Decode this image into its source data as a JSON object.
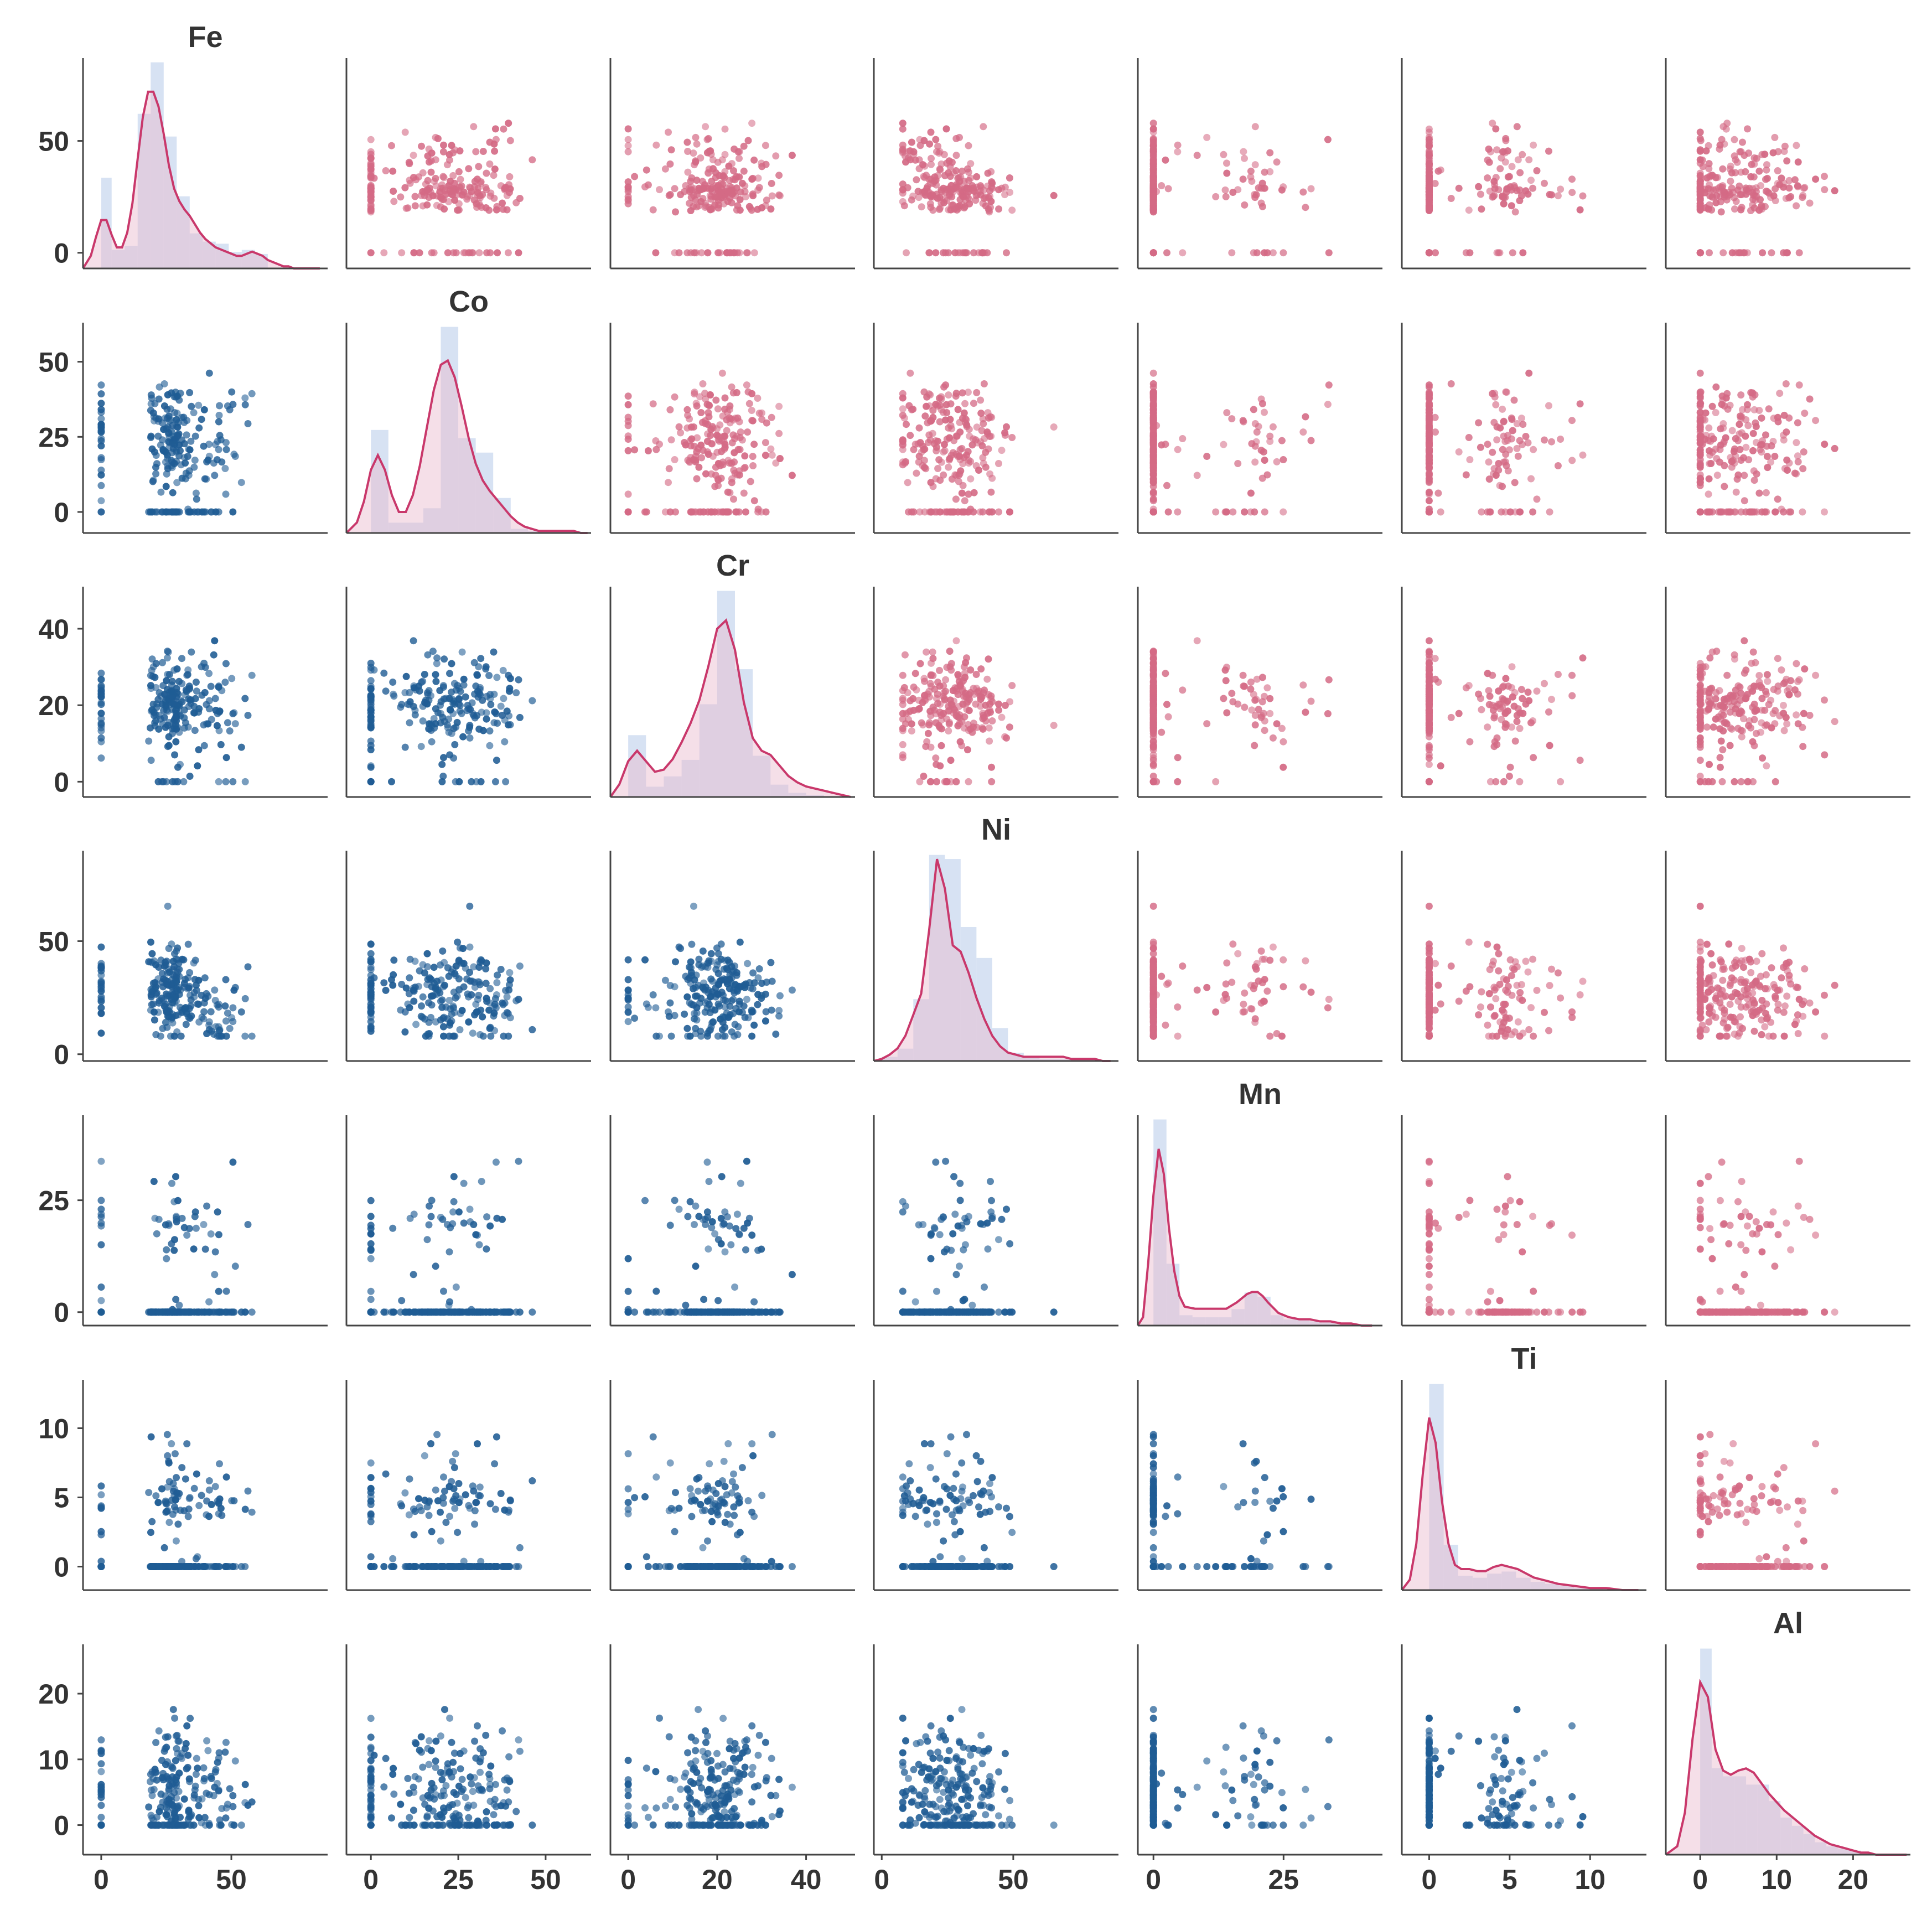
{
  "chart_data": {
    "type": "pairplot",
    "variables": [
      "Fe",
      "Co",
      "Cr",
      "Ni",
      "Mn",
      "Ti",
      "Al"
    ],
    "colors": {
      "upper_points": "#d46a85",
      "lower_points": "#1f5c94",
      "kde_line": "#c9386b",
      "kde_fill": "#e9b7cd",
      "hist_bar": "#c9d8ef",
      "axis": "#444444"
    },
    "grid": false,
    "axes": {
      "Fe": {
        "range": [
          -7,
          87
        ],
        "ticks": [
          0,
          50
        ],
        "tick_labels": [
          "0",
          "50"
        ]
      },
      "Co": {
        "range": [
          -7,
          63
        ],
        "ticks": [
          0,
          25,
          50
        ],
        "tick_labels": [
          "0",
          "25",
          "50"
        ]
      },
      "Cr": {
        "range": [
          -4,
          51
        ],
        "ticks": [
          0,
          20,
          40
        ],
        "tick_labels": [
          "0",
          "20",
          "40"
        ]
      },
      "Ni": {
        "range": [
          -3,
          90
        ],
        "ticks": [
          0,
          50
        ],
        "tick_labels": [
          "0",
          "50"
        ]
      },
      "Mn": {
        "range": [
          -3,
          44
        ],
        "ticks": [
          0,
          25
        ],
        "tick_labels": [
          "0",
          "25"
        ]
      },
      "Ti": {
        "range": [
          -1.7,
          13.5
        ],
        "ticks": [
          0,
          5,
          10
        ],
        "tick_labels": [
          "0",
          "5",
          "10"
        ]
      },
      "Al": {
        "range": [
          -4.5,
          27.5
        ],
        "ticks": [
          0,
          10,
          20
        ],
        "tick_labels": [
          "0",
          "10",
          "20"
        ]
      }
    },
    "diagonal": {
      "Fe": {
        "hist": [
          [
            0,
            4,
            0.44
          ],
          [
            4,
            9,
            0.09
          ],
          [
            9,
            14,
            0.11
          ],
          [
            14,
            19,
            0.75
          ],
          [
            19,
            24,
            1.0
          ],
          [
            24,
            29,
            0.64
          ],
          [
            29,
            34,
            0.35
          ],
          [
            34,
            39,
            0.17
          ],
          [
            39,
            44,
            0.13
          ],
          [
            44,
            49,
            0.12
          ],
          [
            49,
            54,
            0.08
          ],
          [
            54,
            59,
            0.09
          ],
          [
            59,
            64,
            0.07
          ]
        ],
        "kde_x": [
          -8,
          -4,
          -2,
          0,
          2,
          4,
          6,
          8,
          10,
          12,
          14,
          16,
          18,
          20,
          22,
          24,
          26,
          28,
          30,
          32,
          34,
          36,
          38,
          40,
          42,
          44,
          46,
          48,
          50,
          52,
          54,
          56,
          58,
          60,
          62,
          64,
          66,
          68,
          70,
          72,
          74,
          78,
          84
        ],
        "kde_y": [
          0.0,
          0.06,
          0.15,
          0.23,
          0.23,
          0.16,
          0.1,
          0.1,
          0.17,
          0.31,
          0.52,
          0.72,
          0.84,
          0.84,
          0.77,
          0.64,
          0.49,
          0.38,
          0.32,
          0.28,
          0.25,
          0.21,
          0.17,
          0.14,
          0.12,
          0.1,
          0.09,
          0.08,
          0.07,
          0.06,
          0.06,
          0.07,
          0.08,
          0.07,
          0.06,
          0.04,
          0.03,
          0.02,
          0.01,
          0.01,
          0.0,
          0.0,
          0.0
        ]
      },
      "Co": {
        "hist": [
          [
            0,
            5,
            0.5
          ],
          [
            5,
            10,
            0.05
          ],
          [
            10,
            15,
            0.05
          ],
          [
            15,
            20,
            0.12
          ],
          [
            20,
            25,
            1.0
          ],
          [
            25,
            30,
            0.46
          ],
          [
            30,
            35,
            0.39
          ],
          [
            35,
            40,
            0.17
          ],
          [
            40,
            45,
            0.02
          ],
          [
            45,
            50,
            0.01
          ],
          [
            50,
            55,
            0.01
          ],
          [
            55,
            60,
            0.01
          ]
        ],
        "kde_x": [
          -7,
          -4,
          -2,
          0,
          2,
          4,
          6,
          8,
          10,
          12,
          14,
          16,
          18,
          20,
          22,
          24,
          26,
          28,
          30,
          32,
          34,
          36,
          38,
          40,
          42,
          44,
          46,
          48,
          50,
          52,
          54,
          56,
          58,
          60,
          62
        ],
        "kde_y": [
          0.0,
          0.05,
          0.15,
          0.3,
          0.37,
          0.3,
          0.18,
          0.1,
          0.1,
          0.18,
          0.32,
          0.5,
          0.68,
          0.8,
          0.82,
          0.74,
          0.6,
          0.45,
          0.33,
          0.25,
          0.2,
          0.16,
          0.12,
          0.08,
          0.05,
          0.03,
          0.02,
          0.01,
          0.01,
          0.01,
          0.01,
          0.01,
          0.01,
          0.0,
          0.0
        ]
      },
      "Cr": {
        "hist": [
          [
            0,
            4,
            0.3
          ],
          [
            4,
            8,
            0.05
          ],
          [
            8,
            12,
            0.1
          ],
          [
            12,
            16,
            0.18
          ],
          [
            16,
            20,
            0.45
          ],
          [
            20,
            24,
            1.0
          ],
          [
            24,
            28,
            0.62
          ],
          [
            28,
            32,
            0.2
          ],
          [
            32,
            36,
            0.06
          ],
          [
            36,
            40,
            0.02
          ],
          [
            40,
            44,
            0.01
          ]
        ],
        "kde_x": [
          -4,
          -2,
          0,
          2,
          4,
          6,
          8,
          10,
          12,
          14,
          16,
          18,
          20,
          22,
          24,
          26,
          28,
          30,
          32,
          34,
          36,
          38,
          40,
          42,
          44,
          46,
          48,
          50
        ],
        "kde_y": [
          0.0,
          0.06,
          0.17,
          0.22,
          0.17,
          0.12,
          0.13,
          0.18,
          0.26,
          0.35,
          0.46,
          0.62,
          0.8,
          0.84,
          0.7,
          0.45,
          0.28,
          0.22,
          0.2,
          0.15,
          0.1,
          0.07,
          0.05,
          0.04,
          0.03,
          0.02,
          0.01,
          0.0
        ]
      },
      "Ni": {
        "hist": [
          [
            0,
            6,
            0.02
          ],
          [
            6,
            12,
            0.06
          ],
          [
            12,
            18,
            0.3
          ],
          [
            18,
            24,
            1.0
          ],
          [
            24,
            30,
            0.98
          ],
          [
            30,
            36,
            0.65
          ],
          [
            36,
            42,
            0.5
          ],
          [
            42,
            48,
            0.16
          ],
          [
            48,
            54,
            0.04
          ],
          [
            54,
            60,
            0.02
          ],
          [
            60,
            66,
            0.01
          ],
          [
            66,
            72,
            0.01
          ]
        ],
        "kde_x": [
          -3,
          0,
          3,
          6,
          9,
          12,
          15,
          18,
          21,
          24,
          27,
          30,
          33,
          36,
          39,
          42,
          45,
          48,
          51,
          54,
          57,
          60,
          63,
          66,
          69,
          72,
          75,
          78,
          81,
          84,
          87
        ],
        "kde_y": [
          0.0,
          0.01,
          0.03,
          0.06,
          0.12,
          0.22,
          0.32,
          0.62,
          0.96,
          0.82,
          0.55,
          0.52,
          0.42,
          0.3,
          0.2,
          0.12,
          0.07,
          0.04,
          0.03,
          0.02,
          0.02,
          0.02,
          0.02,
          0.02,
          0.02,
          0.01,
          0.01,
          0.01,
          0.01,
          0.0,
          0.0
        ]
      },
      "Mn": {
        "hist": [
          [
            0,
            2.5,
            1.0
          ],
          [
            2.5,
            5,
            0.3
          ],
          [
            5,
            7.5,
            0.05
          ],
          [
            7.5,
            10,
            0.04
          ],
          [
            10,
            12.5,
            0.04
          ],
          [
            12.5,
            15,
            0.04
          ],
          [
            15,
            17.5,
            0.08
          ],
          [
            17.5,
            20,
            0.16
          ],
          [
            20,
            22.5,
            0.14
          ],
          [
            22.5,
            25,
            0.05
          ],
          [
            25,
            27.5,
            0.03
          ],
          [
            27.5,
            30,
            0.03
          ],
          [
            30,
            32.5,
            0.02
          ],
          [
            32.5,
            35,
            0.02
          ]
        ],
        "kde_x": [
          -3,
          -2,
          -1,
          0,
          1,
          2,
          3,
          4,
          5,
          6,
          8,
          10,
          12,
          14,
          16,
          18,
          19,
          20,
          21,
          22,
          24,
          26,
          28,
          30,
          32,
          34,
          36,
          38,
          40,
          42
        ],
        "kde_y": [
          0.0,
          0.04,
          0.3,
          0.62,
          0.84,
          0.72,
          0.46,
          0.26,
          0.14,
          0.09,
          0.08,
          0.08,
          0.08,
          0.08,
          0.11,
          0.15,
          0.16,
          0.16,
          0.14,
          0.11,
          0.06,
          0.04,
          0.03,
          0.03,
          0.02,
          0.02,
          0.01,
          0.01,
          0.0,
          0.0
        ]
      },
      "Ti": {
        "hist": [
          [
            0,
            0.9,
            1.0
          ],
          [
            0.9,
            1.8,
            0.22
          ],
          [
            1.8,
            2.7,
            0.07
          ],
          [
            2.7,
            3.6,
            0.06
          ],
          [
            3.6,
            4.5,
            0.08
          ],
          [
            4.5,
            5.4,
            0.09
          ],
          [
            5.4,
            6.3,
            0.06
          ],
          [
            6.3,
            7.2,
            0.04
          ],
          [
            7.2,
            8.1,
            0.03
          ],
          [
            8.1,
            9.0,
            0.02
          ],
          [
            9.0,
            9.9,
            0.01
          ],
          [
            9.9,
            10.8,
            0.01
          ]
        ],
        "kde_x": [
          -1.7,
          -1.2,
          -0.8,
          -0.4,
          0,
          0.4,
          0.8,
          1.2,
          1.6,
          2.0,
          2.5,
          3.0,
          3.5,
          4.0,
          4.5,
          5.0,
          5.5,
          6.0,
          6.5,
          7.0,
          8.0,
          9.0,
          10.0,
          11.0,
          12.0,
          13.0
        ],
        "kde_y": [
          0.0,
          0.05,
          0.22,
          0.55,
          0.82,
          0.7,
          0.42,
          0.22,
          0.12,
          0.1,
          0.1,
          0.09,
          0.09,
          0.11,
          0.12,
          0.11,
          0.1,
          0.08,
          0.06,
          0.05,
          0.03,
          0.02,
          0.01,
          0.01,
          0.0,
          0.0
        ]
      },
      "Al": {
        "hist": [
          [
            0,
            1.5,
            1.0
          ],
          [
            1.5,
            3,
            0.42
          ],
          [
            3,
            4.5,
            0.38
          ],
          [
            4.5,
            6,
            0.38
          ],
          [
            6,
            7.5,
            0.34
          ],
          [
            7.5,
            9,
            0.34
          ],
          [
            9,
            10.5,
            0.26
          ],
          [
            10.5,
            12,
            0.18
          ],
          [
            12,
            13.5,
            0.14
          ],
          [
            13.5,
            15,
            0.1
          ],
          [
            15,
            16.5,
            0.06
          ],
          [
            16.5,
            18,
            0.04
          ],
          [
            18,
            19.5,
            0.03
          ],
          [
            19.5,
            21,
            0.02
          ],
          [
            21,
            22.5,
            0.01
          ]
        ],
        "kde_x": [
          -4.5,
          -3,
          -2,
          -1,
          0,
          1,
          2,
          3,
          4,
          5,
          6,
          7,
          8,
          9,
          10,
          11,
          12,
          13,
          14,
          15,
          16,
          17,
          18,
          19,
          20,
          21,
          22,
          23,
          24,
          25,
          27
        ],
        "kde_y": [
          0.0,
          0.04,
          0.2,
          0.55,
          0.82,
          0.75,
          0.5,
          0.4,
          0.38,
          0.4,
          0.41,
          0.39,
          0.34,
          0.29,
          0.25,
          0.21,
          0.18,
          0.15,
          0.12,
          0.09,
          0.07,
          0.05,
          0.04,
          0.03,
          0.02,
          0.01,
          0.01,
          0.0,
          0.0,
          0.0,
          0.0
        ]
      }
    }
  }
}
